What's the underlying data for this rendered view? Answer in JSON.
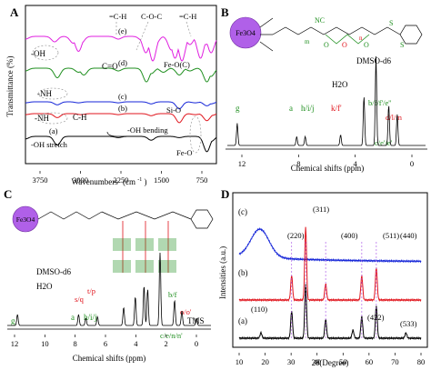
{
  "colors": {
    "black": "#000000",
    "red": "#e0141c",
    "green": "#1f8f1f",
    "blue": "#1626d8",
    "magenta": "#e020e0",
    "purple": "#b060e8",
    "gray": "#888888"
  },
  "panels": {
    "A": {
      "letter": "A",
      "ylabel": "Transmittance (%)",
      "xlabel": "Wavenumbers",
      "xlabel_unit": "(cm",
      "xlabel_sup": "-1",
      "xlabel_close": ")",
      "xticks": [
        "3750",
        "3000",
        "2250",
        "1500",
        "750"
      ],
      "curve_labels": [
        "(e)",
        "(d)",
        "(c)",
        "(b)",
        "(a)"
      ],
      "annotations": [
        "=C-H",
        "C-O-C",
        "=C-H",
        "-OH",
        "C=O",
        "Fe-O(C)",
        "-NH",
        "Si-O",
        "-NH",
        "C-H",
        "-OH stretch",
        "-OH bending",
        "Fe-O"
      ]
    },
    "B": {
      "letter": "B",
      "core": "Fe3O4",
      "struct_labels": [
        "NC",
        "S",
        "S",
        "O",
        "O",
        "O",
        "O",
        "n",
        "m"
      ],
      "axis_label": "Chemical shifts (ppm)",
      "xticks": [
        "12",
        "8",
        "4",
        "0"
      ],
      "peaks": [
        "g",
        "a",
        "h/i/j",
        "k/f'",
        "H2O",
        "DMSO-d6",
        "b/f/f'/e''",
        "d/l/m",
        "c/e'/e'"
      ]
    },
    "C": {
      "letter": "C",
      "core": "Fe3O4",
      "peaks": [
        "DMSO-d6",
        "H2O",
        "t/p",
        "s/q",
        "b/f",
        "o/o'",
        "TMS",
        "g",
        "a",
        "h/i/j",
        "c/e/n/n'"
      ],
      "axis_label": "Chemical shifts (ppm)",
      "xticks": [
        "12",
        "10",
        "8",
        "6",
        "4",
        "2",
        "0"
      ]
    },
    "D": {
      "letter": "D",
      "ylabel": "Intensities (a.u.)",
      "xlabel": "2θ(Degree)",
      "xticks": [
        "10",
        "20",
        "30",
        "40",
        "50",
        "60",
        "70",
        "80"
      ],
      "curve_labels": [
        "(c)",
        "(b)",
        "(a)"
      ],
      "hkl": [
        "(220)",
        "(311)",
        "(400)",
        "(511)",
        "(440)",
        "(110)",
        "(422)",
        "(533)"
      ]
    }
  },
  "chart_data": [
    {
      "type": "line",
      "panel": "A",
      "xlabel": "Wavenumbers (cm-1)",
      "ylabel": "Transmittance (%)",
      "xlim": [
        4000,
        400
      ],
      "series": [
        {
          "name": "(e)",
          "color": "#e020e0",
          "x": [
            4000,
            3450,
            3100,
            3000,
            2950,
            2250,
            1800,
            1730,
            1650,
            1600,
            1550,
            1250,
            1180,
            1100,
            1050,
            900,
            700,
            600,
            500
          ],
          "y": [
            0.1,
            0.2,
            0.25,
            0.55,
            0.25,
            0.1,
            0.15,
            0.6,
            0.2,
            0.9,
            0.3,
            0.5,
            0.8,
            0.4,
            0.9,
            0.3,
            0.8,
            0.3,
            0.6
          ]
        },
        {
          "name": "(d)",
          "color": "#1f8f1f",
          "x": [
            4000,
            3400,
            3000,
            2900,
            2250,
            1720,
            1630,
            1400,
            1100,
            900,
            580,
            500
          ],
          "y": [
            0.1,
            0.35,
            0.15,
            0.25,
            0.1,
            0.5,
            0.2,
            0.15,
            0.25,
            0.1,
            0.5,
            0.3
          ]
        },
        {
          "name": "(c)",
          "color": "#1626d8",
          "x": [
            4000,
            3400,
            3000,
            2250,
            1630,
            1100,
            800,
            580,
            500
          ],
          "y": [
            0.05,
            0.15,
            0.05,
            0.05,
            0.1,
            0.35,
            0.05,
            0.2,
            0.1
          ]
        },
        {
          "name": "(b)",
          "color": "#e0141c",
          "x": [
            4000,
            3400,
            2950,
            2250,
            1630,
            1100,
            800,
            580,
            500
          ],
          "y": [
            0.05,
            0.2,
            0.05,
            0.05,
            0.1,
            0.45,
            0.05,
            0.35,
            0.1
          ]
        },
        {
          "name": "(a)",
          "color": "#000000",
          "x": [
            4000,
            3400,
            2250,
            1630,
            1100,
            580,
            500
          ],
          "y": [
            0.1,
            0.35,
            0.05,
            0.15,
            0.05,
            0.6,
            0.2
          ]
        }
      ]
    },
    {
      "type": "line",
      "panel": "B",
      "xlabel": "Chemical shifts (ppm)",
      "xlim": [
        13,
        -1
      ],
      "series": [
        {
          "name": "1H NMR",
          "color": "#000000",
          "peaks": [
            [
              12.3,
              0.25
            ],
            [
              8.1,
              0.1
            ],
            [
              7.5,
              0.1
            ],
            [
              5.0,
              0.12
            ],
            [
              3.35,
              0.55
            ],
            [
              2.5,
              1.0
            ],
            [
              1.6,
              0.45
            ],
            [
              1.0,
              0.35
            ]
          ]
        }
      ]
    },
    {
      "type": "line",
      "panel": "C",
      "xlabel": "Chemical shifts (ppm)",
      "xlim": [
        13,
        -1
      ],
      "series": [
        {
          "name": "1H NMR",
          "color": "#000000",
          "peaks": [
            [
              12.3,
              0.15
            ],
            [
              8.1,
              0.15
            ],
            [
              7.6,
              0.1
            ],
            [
              6.8,
              0.12
            ],
            [
              5.0,
              0.25
            ],
            [
              4.2,
              0.4
            ],
            [
              3.6,
              0.55
            ],
            [
              3.35,
              0.5
            ],
            [
              2.5,
              1.0
            ],
            [
              1.5,
              0.35
            ],
            [
              1.0,
              0.2
            ],
            [
              0.0,
              0.1
            ]
          ]
        }
      ]
    },
    {
      "type": "line",
      "panel": "D",
      "xlabel": "2θ(Degree)",
      "ylabel": "Intensities (a.u.)",
      "xlim": [
        10,
        80
      ],
      "series": [
        {
          "name": "(c)",
          "color": "#1626d8",
          "peaks": [
            [
              18,
              0.6
            ]
          ]
        },
        {
          "name": "(b)",
          "color": "#e0141c",
          "peaks": [
            [
              30.2,
              0.3
            ],
            [
              35.6,
              0.9
            ],
            [
              43.3,
              0.2
            ],
            [
              57.2,
              0.3
            ],
            [
              62.8,
              0.4
            ]
          ]
        },
        {
          "name": "(a)",
          "color": "#000000",
          "peaks": [
            [
              18.4,
              0.1
            ],
            [
              30.2,
              0.5
            ],
            [
              35.6,
              1.0
            ],
            [
              43.3,
              0.35
            ],
            [
              53.8,
              0.15
            ],
            [
              57.2,
              0.4
            ],
            [
              62.8,
              0.6
            ],
            [
              74.2,
              0.1
            ]
          ]
        }
      ]
    }
  ]
}
